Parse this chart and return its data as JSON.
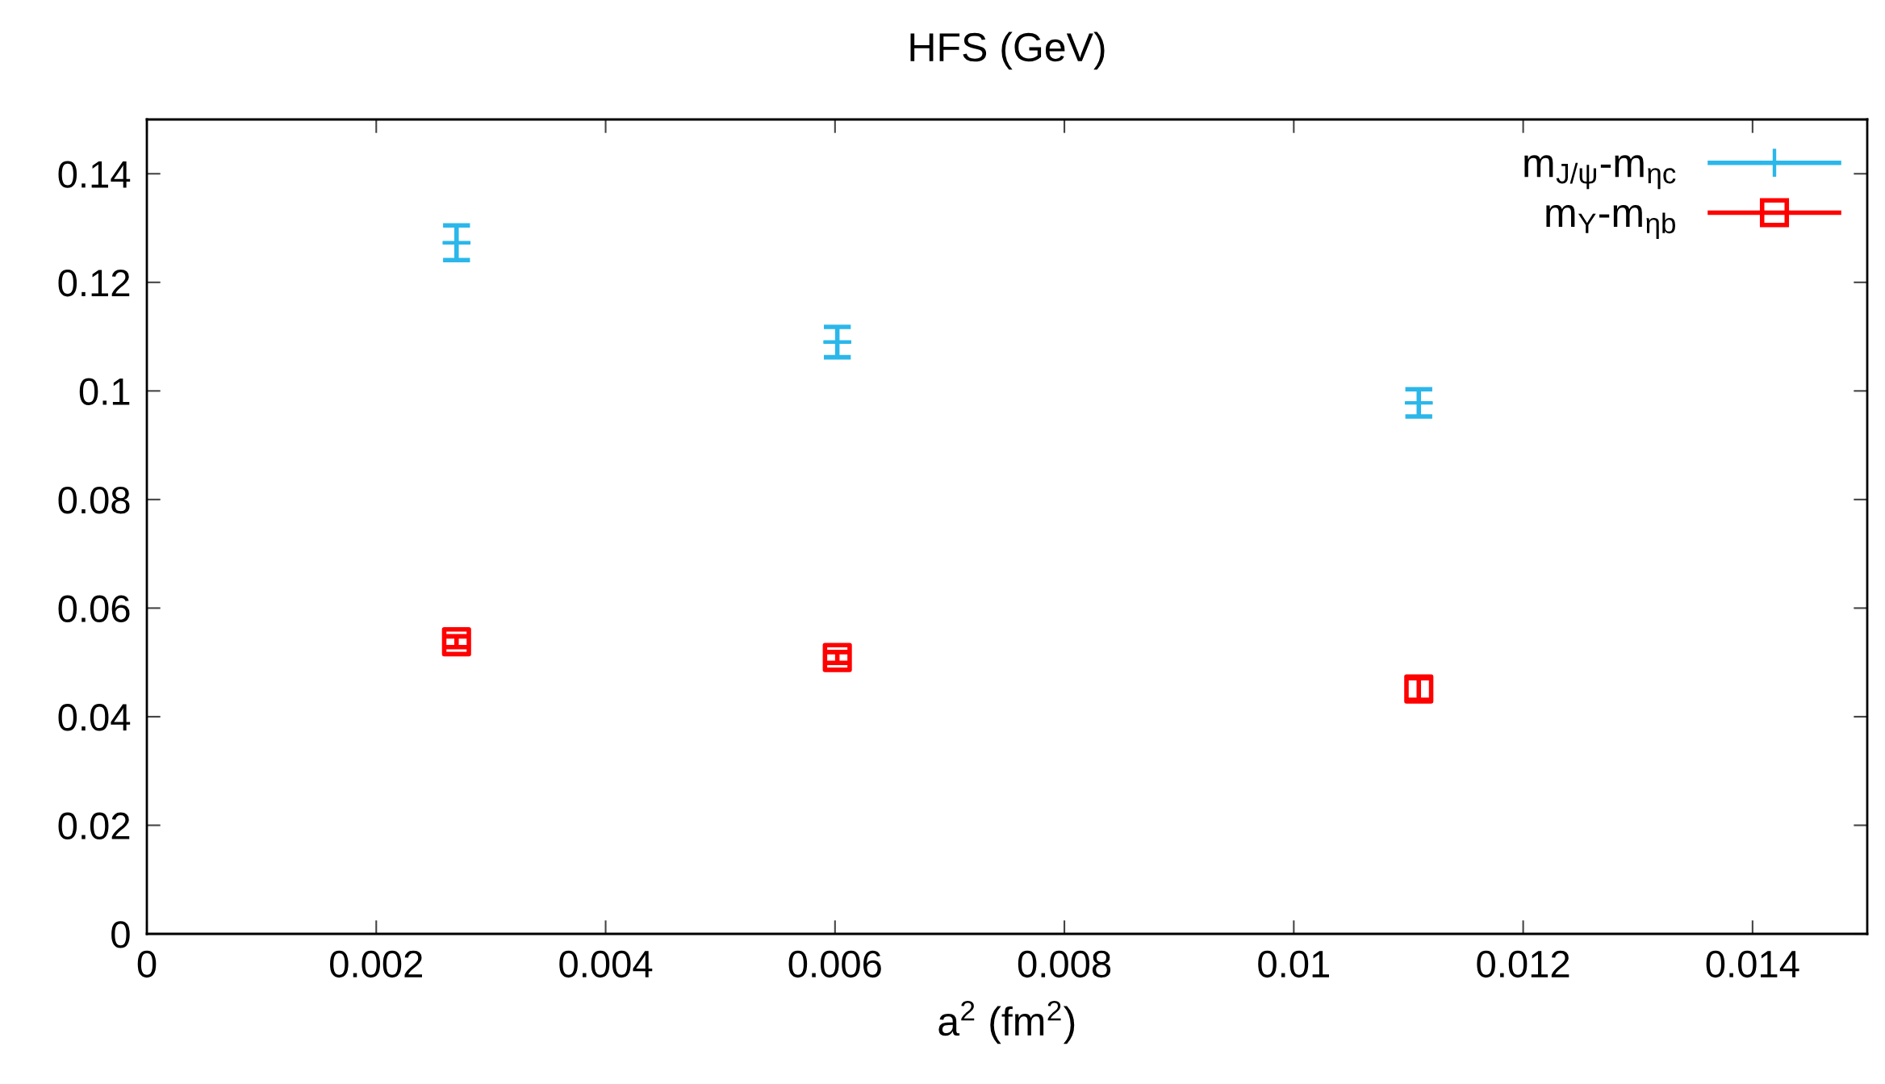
{
  "chart_data": {
    "type": "scatter",
    "title": "HFS (GeV)",
    "xlabel": "a$^{2}$ (fm$^{2}$)",
    "x": [
      0.0027,
      0.00602,
      0.01109
    ],
    "series": [
      {
        "name": "m$_{J/ψ}$-m$_{ηc}$",
        "color": "#2bb7ea",
        "marker": "cross",
        "values": [
          0.1273,
          0.109,
          0.0978
        ],
        "errors": [
          0.0032,
          0.0028,
          0.0025
        ]
      },
      {
        "name": "m$_{Υ}$-m$_{ηb}$",
        "color": "#ff0000",
        "marker": "square",
        "values": [
          0.0538,
          0.0509,
          0.0451
        ],
        "errors": [
          0.001,
          0.001,
          0.002
        ]
      }
    ],
    "xlim": [
      0,
      0.015
    ],
    "xticks": [
      0,
      0.002,
      0.004,
      0.006,
      0.008,
      0.01,
      0.012,
      0.014
    ],
    "ylim": [
      0,
      0.15
    ],
    "yticks": [
      0,
      0.02,
      0.04,
      0.06,
      0.08,
      0.1,
      0.12,
      0.14
    ],
    "grid": false,
    "legend": "top right"
  }
}
